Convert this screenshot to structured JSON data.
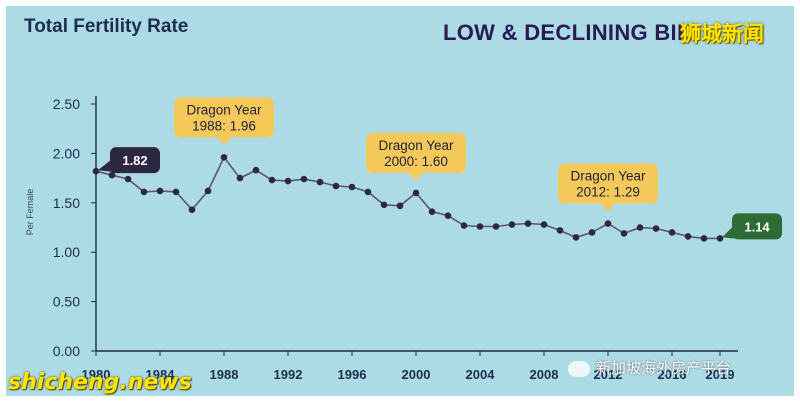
{
  "header": {
    "title": "Total Fertility Rate",
    "headline": "LOW & DECLINING BIR"
  },
  "watermarks": {
    "top_right": "狮城新闻",
    "bottom_left": "shicheng.news",
    "wechat": "新加坡海外房产平台"
  },
  "colors": {
    "background": "#acdbe6",
    "line": "#5a5570",
    "marker": "#2e2742",
    "callout_yellow": "#f5c85a",
    "callout_dark": "#2e2742",
    "callout_green": "#2f6b34"
  },
  "chart_data": {
    "type": "line",
    "ylabel": "Per Female",
    "xlabel": "",
    "ylim": [
      0,
      2.5
    ],
    "xlim": [
      1980,
      2019
    ],
    "yticks": [
      "0.00",
      "0.50",
      "1.00",
      "1.50",
      "2.00",
      "2.50"
    ],
    "ytick_values": [
      0,
      0.5,
      1,
      1.5,
      2,
      2.5
    ],
    "xticks": [
      "1980",
      "1984",
      "1988",
      "1992",
      "1996",
      "2000",
      "2004",
      "2008",
      "2012",
      "2016",
      "2019"
    ],
    "xtick_values": [
      1980,
      1984,
      1988,
      1992,
      1996,
      2000,
      2004,
      2008,
      2012,
      2016,
      2019
    ],
    "grid": false,
    "series": [
      {
        "x": [
          1980,
          1981,
          1982,
          1983,
          1984,
          1985,
          1986,
          1987,
          1988,
          1989,
          1990,
          1991,
          1992,
          1993,
          1994,
          1995,
          1996,
          1997,
          1998,
          1999,
          2000,
          2001,
          2002,
          2003,
          2004,
          2005,
          2006,
          2007,
          2008,
          2009,
          2010,
          2011,
          2012,
          2013,
          2014,
          2015,
          2016,
          2017,
          2018,
          2019
        ],
        "values": [
          1.82,
          1.78,
          1.74,
          1.61,
          1.62,
          1.61,
          1.43,
          1.62,
          1.96,
          1.75,
          1.83,
          1.73,
          1.72,
          1.74,
          1.71,
          1.67,
          1.66,
          1.61,
          1.48,
          1.47,
          1.6,
          1.41,
          1.37,
          1.27,
          1.26,
          1.26,
          1.28,
          1.29,
          1.28,
          1.22,
          1.15,
          1.2,
          1.29,
          1.19,
          1.25,
          1.24,
          1.2,
          1.16,
          1.14,
          1.14
        ]
      }
    ],
    "annotations": [
      {
        "style": "dark",
        "text": "1.82",
        "x": 1980,
        "y": 1.82
      },
      {
        "style": "yellow",
        "line1": "Dragon Year",
        "line2": "1988: 1.96",
        "x": 1988,
        "y": 1.96
      },
      {
        "style": "yellow",
        "line1": "Dragon Year",
        "line2": "2000: 1.60",
        "x": 2000,
        "y": 1.6
      },
      {
        "style": "yellow",
        "line1": "Dragon Year",
        "line2": "2012: 1.29",
        "x": 2012,
        "y": 1.29
      },
      {
        "style": "green",
        "text": "1.14",
        "x": 2019,
        "y": 1.14
      }
    ]
  }
}
